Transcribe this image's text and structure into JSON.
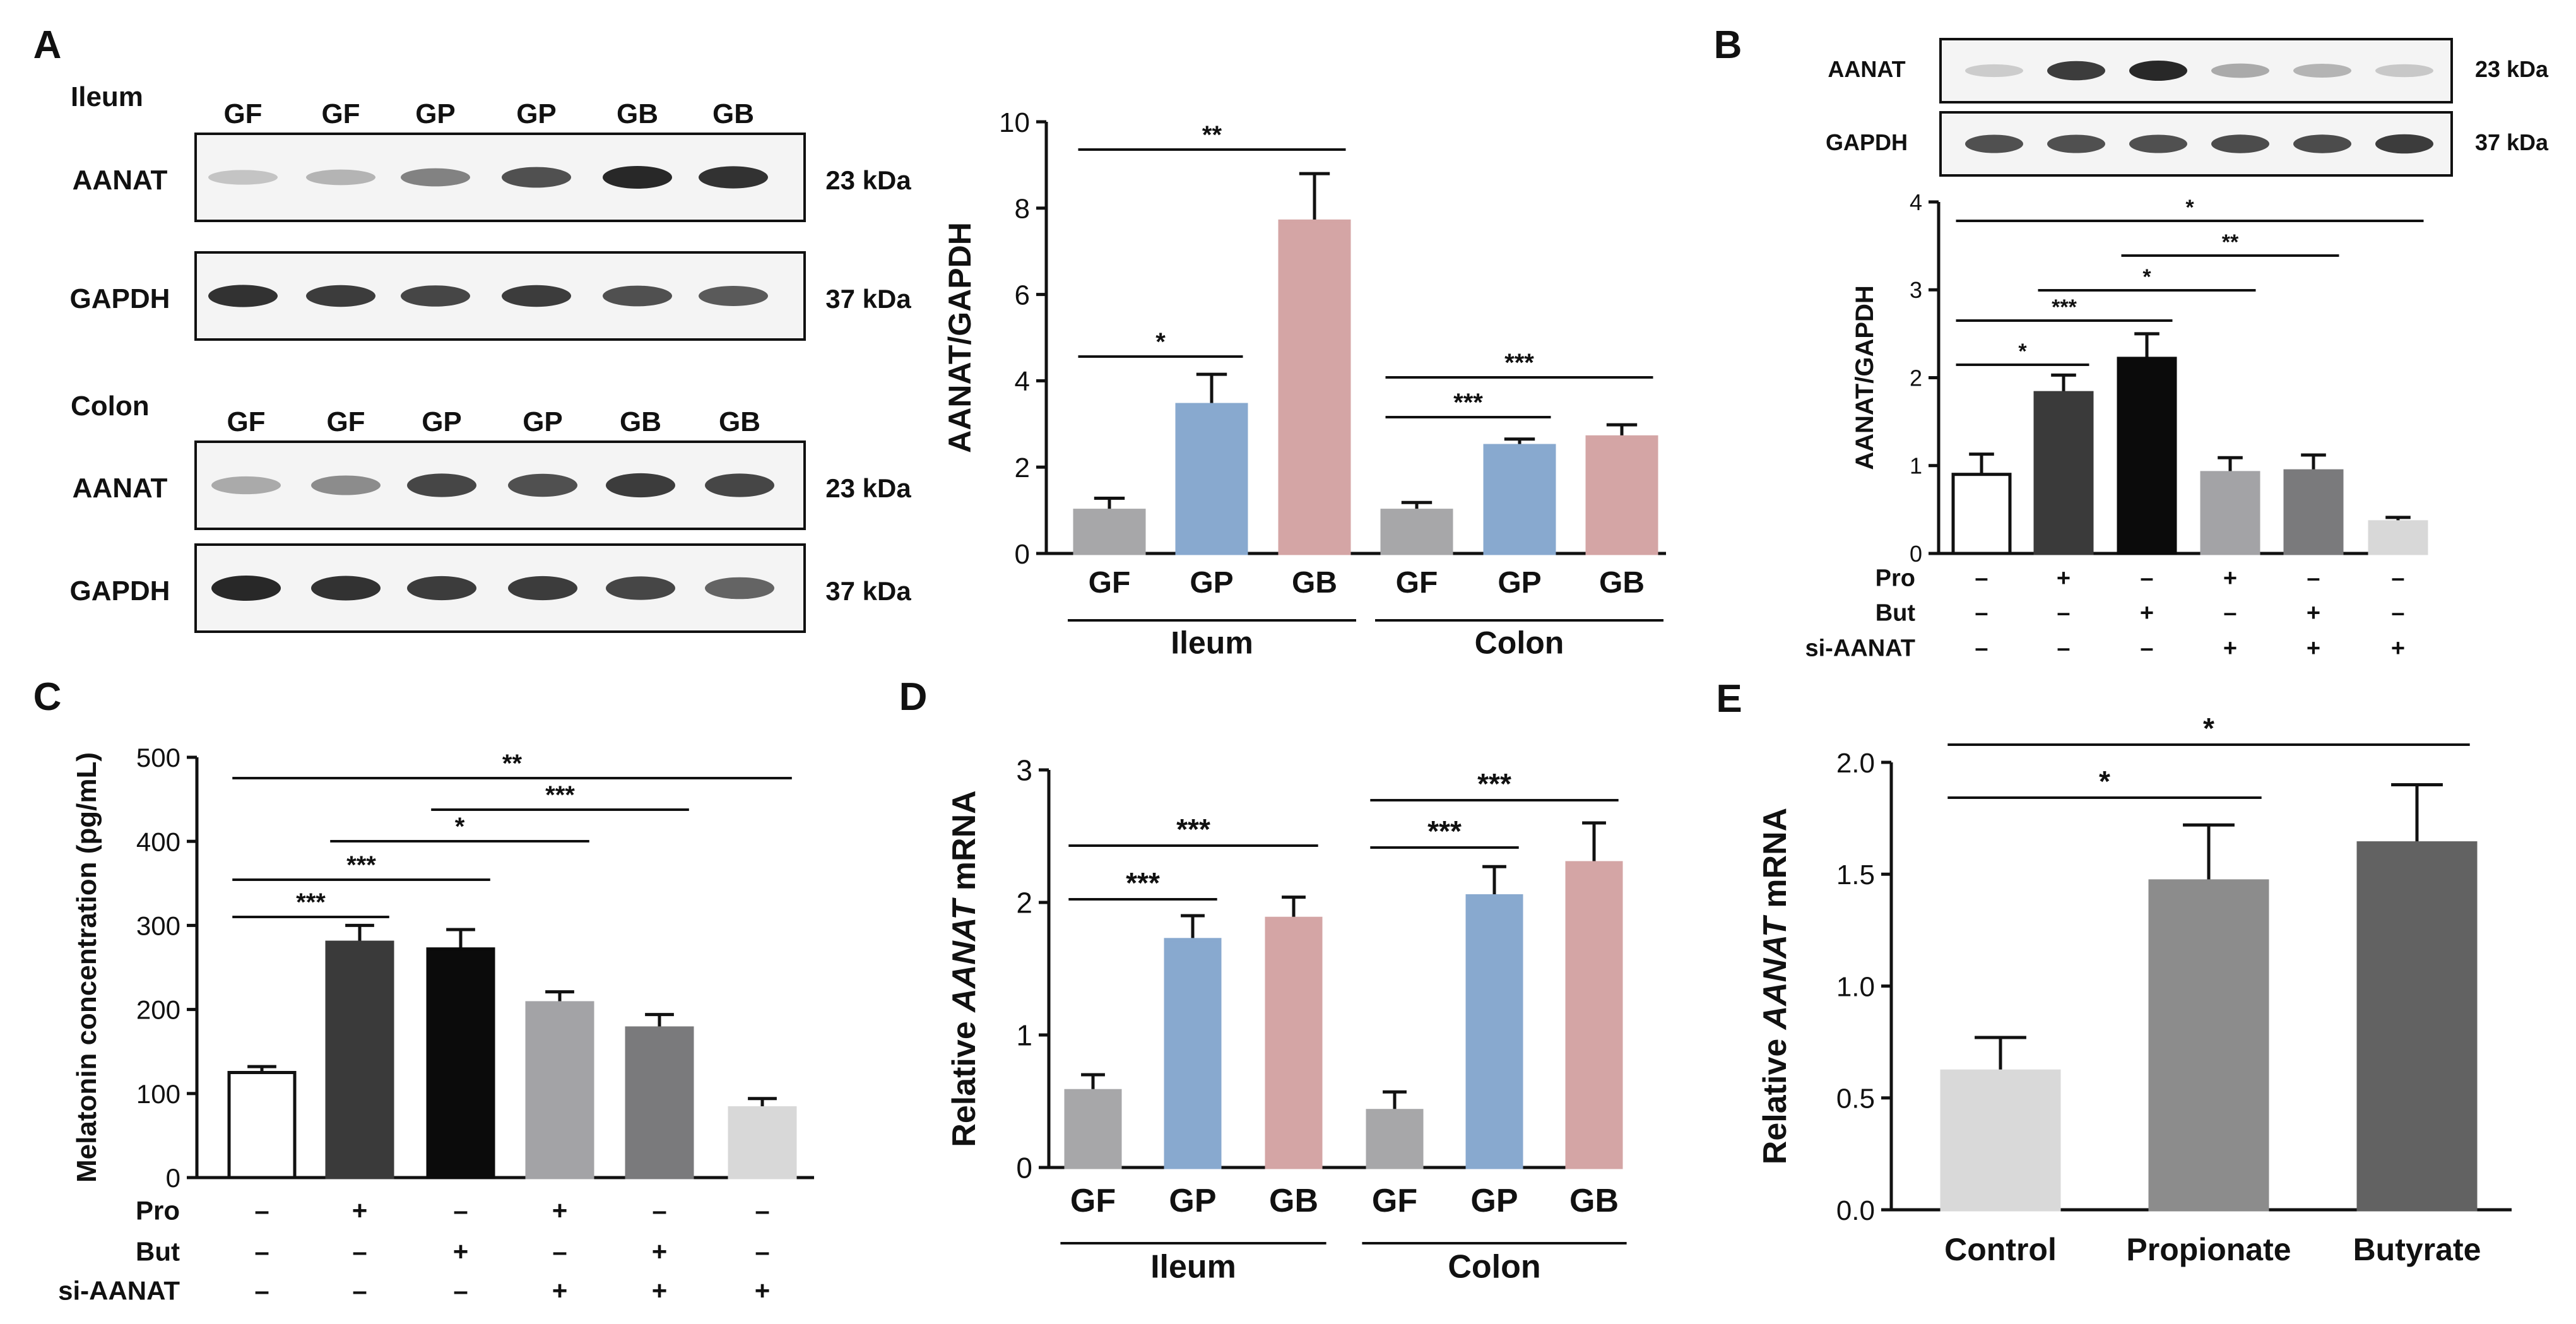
{
  "figure": {
    "panels": {
      "A": {
        "letter": "A",
        "blot_ileum": {
          "tissue": "Ileum",
          "lanes": [
            "GF",
            "GF",
            "GP",
            "GP",
            "GB",
            "GB"
          ],
          "rows": [
            {
              "protein": "AANAT",
              "kda": "23 kDa",
              "intensity": [
                0.22,
                0.3,
                0.55,
                0.8,
                1.0,
                0.95
              ]
            },
            {
              "protein": "GAPDH",
              "kda": "37 kDa",
              "intensity": [
                0.95,
                0.9,
                0.85,
                0.9,
                0.8,
                0.75
              ]
            }
          ]
        },
        "blot_colon": {
          "tissue": "Colon",
          "lanes": [
            "GF",
            "GF",
            "GP",
            "GP",
            "GB",
            "GB"
          ],
          "rows": [
            {
              "protein": "AANAT",
              "kda": "23 kDa",
              "intensity": [
                0.35,
                0.5,
                0.85,
                0.8,
                0.9,
                0.85
              ]
            },
            {
              "protein": "GAPDH",
              "kda": "37 kDa",
              "intensity": [
                1.0,
                0.95,
                0.9,
                0.9,
                0.85,
                0.7
              ]
            }
          ]
        }
      },
      "B": {
        "letter": "B",
        "blot": {
          "lanes": 6,
          "rows": [
            {
              "protein": "AANAT",
              "kda": "23 kDa",
              "intensity": [
                0.18,
                0.9,
                1.0,
                0.35,
                0.3,
                0.2
              ]
            },
            {
              "protein": "GAPDH",
              "kda": "37 kDa",
              "intensity": [
                0.8,
                0.8,
                0.8,
                0.82,
                0.82,
                0.9
              ]
            }
          ]
        }
      },
      "C": {
        "letter": "C"
      },
      "D": {
        "letter": "D"
      },
      "E": {
        "letter": "E"
      }
    },
    "treatment_table": {
      "labels": [
        "Pro",
        "But",
        "si-AANAT"
      ],
      "rows": [
        [
          "–",
          "+",
          "–",
          "+",
          "–",
          "–"
        ],
        [
          "–",
          "–",
          "+",
          "–",
          "+",
          "–"
        ],
        [
          "–",
          "–",
          "–",
          "+",
          "+",
          "+"
        ]
      ]
    }
  },
  "chart_data": [
    {
      "panel": "A",
      "type": "bar",
      "ylabel": "AANAT/GAPDH",
      "ylim": [
        0,
        10
      ],
      "yticks": [
        "0",
        "2",
        "4",
        "6",
        "8",
        "10"
      ],
      "groups": [
        {
          "label": "Ileum",
          "bars": [
            0,
            1,
            2
          ]
        },
        {
          "label": "Colon",
          "bars": [
            3,
            4,
            5
          ]
        }
      ],
      "categories": [
        "GF",
        "GP",
        "GB",
        "GF",
        "GP",
        "GB"
      ],
      "values": [
        1.0,
        3.45,
        7.7,
        1.0,
        2.5,
        2.7
      ],
      "errors": [
        0.28,
        0.7,
        1.1,
        0.18,
        0.15,
        0.28
      ],
      "colors": [
        "#a7a7a9",
        "#88a9cf",
        "#d4a5a5",
        "#a7a7a9",
        "#88a9cf",
        "#d4a5a5"
      ],
      "significance": [
        {
          "from": 0,
          "to": 2,
          "label": "**"
        },
        {
          "from": 0,
          "to": 1,
          "label": "*"
        },
        {
          "from": 3,
          "to": 5,
          "label": "***"
        },
        {
          "from": 3,
          "to": 4,
          "label": "***"
        }
      ]
    },
    {
      "panel": "B",
      "type": "bar",
      "ylabel": "AANAT/GAPDH",
      "ylim": [
        0,
        4
      ],
      "yticks": [
        "0",
        "1",
        "2",
        "3",
        "4"
      ],
      "values": [
        0.9,
        1.83,
        2.22,
        0.92,
        0.94,
        0.36
      ],
      "errors": [
        0.23,
        0.2,
        0.28,
        0.17,
        0.18,
        0.05
      ],
      "colors": [
        "#ffffff",
        "#3a3a3a",
        "#0b0b0b",
        "#a3a3a6",
        "#7a7a7c",
        "#d8d8d8"
      ],
      "significance": [
        {
          "from": 0,
          "to": 5,
          "label": "*"
        },
        {
          "from": 2,
          "to": 4,
          "label": "**"
        },
        {
          "from": 1,
          "to": 3,
          "label": "*"
        },
        {
          "from": 0,
          "to": 2,
          "label": "***"
        },
        {
          "from": 0,
          "to": 1,
          "label": "*"
        }
      ]
    },
    {
      "panel": "C",
      "type": "bar",
      "ylabel": "Melatonin concentration (pg/mL)",
      "ylim": [
        0,
        500
      ],
      "yticks": [
        "0",
        "100",
        "200",
        "300",
        "400",
        "500"
      ],
      "values": [
        125,
        280,
        272,
        208,
        178,
        83
      ],
      "errors": [
        7,
        20,
        23,
        13,
        16,
        11
      ],
      "colors": [
        "#ffffff",
        "#3a3a3a",
        "#0b0b0b",
        "#a3a3a6",
        "#7a7a7c",
        "#d8d8d8"
      ],
      "significance": [
        {
          "from": 0,
          "to": 5,
          "label": "**"
        },
        {
          "from": 2,
          "to": 4,
          "label": "***"
        },
        {
          "from": 1,
          "to": 3,
          "label": "*"
        },
        {
          "from": 0,
          "to": 2,
          "label": "***"
        },
        {
          "from": 0,
          "to": 1,
          "label": "***"
        }
      ]
    },
    {
      "panel": "D",
      "type": "bar",
      "ylabel_plain": "Relative ",
      "ylabel_italic": "AANAT",
      "ylabel_suffix": " mRNA",
      "ylim": [
        0,
        3
      ],
      "yticks": [
        "0",
        "1",
        "2",
        "3"
      ],
      "groups": [
        {
          "label": "Ileum",
          "bars": [
            0,
            1,
            2
          ]
        },
        {
          "label": "Colon",
          "bars": [
            3,
            4,
            5
          ]
        }
      ],
      "categories": [
        "GF",
        "GP",
        "GB",
        "GF",
        "GP",
        "GB"
      ],
      "values": [
        0.58,
        1.72,
        1.88,
        0.43,
        2.05,
        2.3
      ],
      "errors": [
        0.12,
        0.18,
        0.16,
        0.14,
        0.22,
        0.3
      ],
      "colors": [
        "#a7a7a9",
        "#88a9cf",
        "#d4a5a5",
        "#a7a7a9",
        "#88a9cf",
        "#d4a5a5"
      ],
      "significance": [
        {
          "from": 0,
          "to": 2,
          "label": "***"
        },
        {
          "from": 0,
          "to": 1,
          "label": "***"
        },
        {
          "from": 3,
          "to": 5,
          "label": "***"
        },
        {
          "from": 3,
          "to": 4,
          "label": "***"
        }
      ]
    },
    {
      "panel": "E",
      "type": "bar",
      "ylabel_plain": "Relative ",
      "ylabel_italic": "AANAT",
      "ylabel_suffix": " mRNA",
      "ylim": [
        0,
        2.0
      ],
      "yticks": [
        "0.0",
        "0.5",
        "1.0",
        "1.5",
        "2.0"
      ],
      "categories": [
        "Control",
        "Propionate",
        "Butyrate"
      ],
      "values": [
        0.62,
        1.47,
        1.64
      ],
      "errors": [
        0.15,
        0.25,
        0.26
      ],
      "colors": [
        "#d9d9d9",
        "#8c8c8c",
        "#626262"
      ],
      "significance": [
        {
          "from": 0,
          "to": 2,
          "label": "*"
        },
        {
          "from": 0,
          "to": 1,
          "label": "*"
        }
      ]
    }
  ]
}
